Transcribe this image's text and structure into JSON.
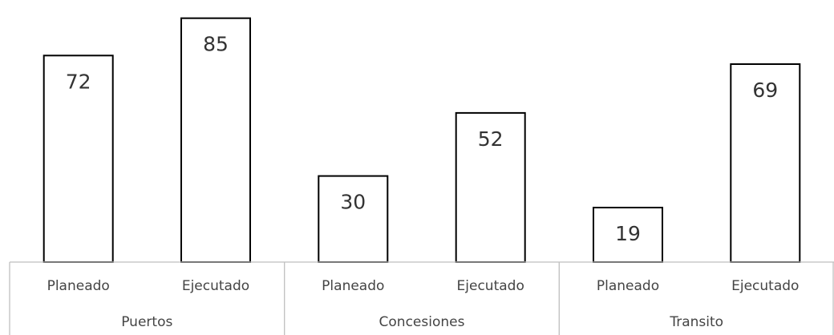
{
  "chart_data": {
    "type": "bar",
    "title": "",
    "xlabel": "",
    "ylabel": "",
    "ylim": [
      0,
      88
    ],
    "grid": false,
    "groups": [
      {
        "name": "Puertos",
        "categories": [
          "Planeado",
          "Ejecutado"
        ],
        "values": [
          72,
          85
        ]
      },
      {
        "name": "Concesiones",
        "categories": [
          "Planeado",
          "Ejecutado"
        ],
        "values": [
          30,
          52
        ]
      },
      {
        "name": "Transito",
        "categories": [
          "Planeado",
          "Ejecutado"
        ],
        "values": [
          19,
          69
        ]
      }
    ],
    "colors": {
      "bar_fill": "#ffffff",
      "bar_stroke": "#000000",
      "axis": "#bfbfbf",
      "text": "#333333"
    }
  }
}
